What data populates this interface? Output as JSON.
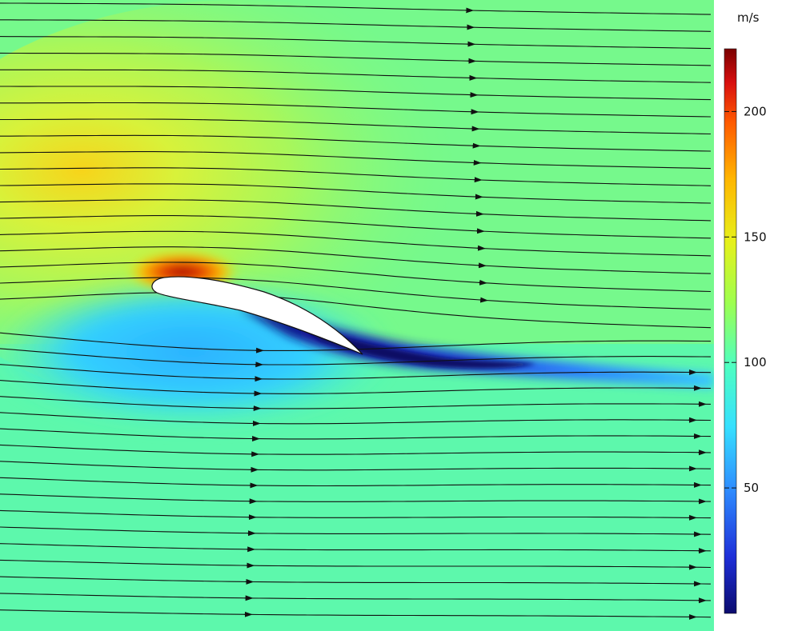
{
  "plot": {
    "field": "velocity magnitude",
    "colormap": "rainbow",
    "streamlines": true,
    "features": [
      "airfoil",
      "streamlines",
      "colorbar"
    ]
  },
  "colorbar": {
    "unit": "m/s",
    "min": 0,
    "max": 225,
    "ticks": [
      {
        "value": 200,
        "label": "200"
      },
      {
        "value": 150,
        "label": "150"
      },
      {
        "value": 100,
        "label": "100"
      },
      {
        "value": 50,
        "label": "50"
      }
    ],
    "colors": [
      "#0b0b6e",
      "#1e2fd8",
      "#2f8dff",
      "#36e0ff",
      "#4fffc0",
      "#9dff4f",
      "#e7f01a",
      "#ffb600",
      "#ff5a00",
      "#d80f0f",
      "#7a0000"
    ]
  }
}
